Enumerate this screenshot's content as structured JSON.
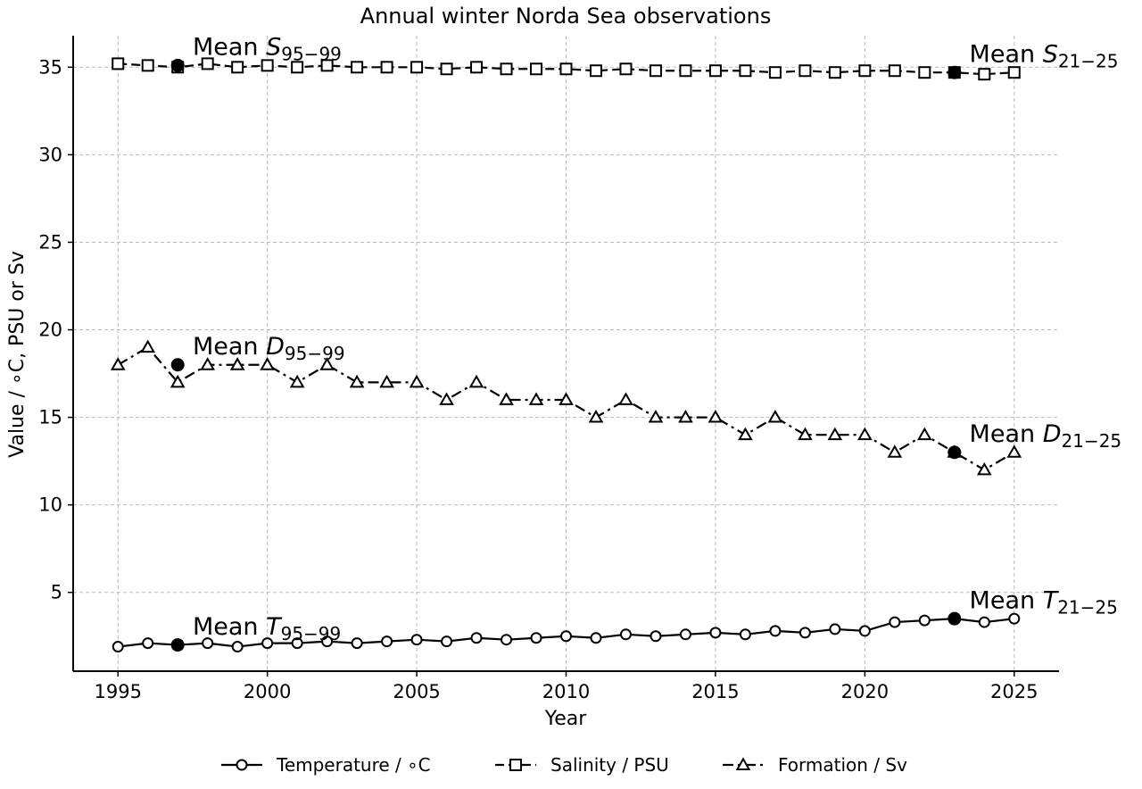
{
  "chart_data": {
    "type": "line",
    "title": "Annual winter Norda Sea observations",
    "xlabel": "Year",
    "ylabel": "Value / ∘C, PSU or Sv",
    "xlim": [
      1993.5,
      2026.5
    ],
    "ylim": [
      0.5,
      36.8
    ],
    "xticks": [
      1995,
      2000,
      2005,
      2010,
      2015,
      2020,
      2025
    ],
    "yticks": [
      5,
      10,
      15,
      20,
      25,
      30,
      35
    ],
    "grid": true,
    "legend_position": "bottom",
    "x": [
      1995,
      1996,
      1997,
      1998,
      1999,
      2000,
      2001,
      2002,
      2003,
      2004,
      2005,
      2006,
      2007,
      2008,
      2009,
      2010,
      2011,
      2012,
      2013,
      2014,
      2015,
      2016,
      2017,
      2018,
      2019,
      2020,
      2021,
      2022,
      2023,
      2024,
      2025
    ],
    "series": [
      {
        "name": "Temperature / ∘C",
        "marker": "circle",
        "line_style": "solid",
        "values": [
          1.9,
          2.1,
          2.0,
          2.1,
          1.9,
          2.1,
          2.1,
          2.2,
          2.1,
          2.2,
          2.3,
          2.2,
          2.4,
          2.3,
          2.4,
          2.5,
          2.4,
          2.6,
          2.5,
          2.6,
          2.7,
          2.6,
          2.8,
          2.7,
          2.9,
          2.8,
          3.3,
          3.4,
          3.5,
          3.3,
          3.5
        ]
      },
      {
        "name": "Salinity / PSU",
        "marker": "square",
        "line_style": "dashed",
        "values": [
          35.2,
          35.1,
          35.0,
          35.2,
          35.0,
          35.1,
          35.0,
          35.1,
          35.0,
          35.0,
          35.0,
          34.9,
          35.0,
          34.9,
          34.9,
          34.9,
          34.8,
          34.9,
          34.8,
          34.8,
          34.8,
          34.8,
          34.7,
          34.8,
          34.7,
          34.8,
          34.8,
          34.7,
          34.7,
          34.6,
          34.7
        ]
      },
      {
        "name": "Formation / Sv",
        "marker": "triangle",
        "line_style": "dashdot",
        "values": [
          18,
          19,
          17,
          18,
          18,
          18,
          17,
          18,
          17,
          17,
          17,
          16,
          17,
          16,
          16,
          16,
          15,
          16,
          15,
          15,
          15,
          14,
          15,
          14,
          14,
          14,
          13,
          14,
          13,
          12,
          13
        ]
      }
    ],
    "mean_points": [
      {
        "x": 1997,
        "y": 35.1
      },
      {
        "x": 2023,
        "y": 34.7
      },
      {
        "x": 1997,
        "y": 18.0
      },
      {
        "x": 2023,
        "y": 13.0
      },
      {
        "x": 1997,
        "y": 2.0
      },
      {
        "x": 2023,
        "y": 3.5
      }
    ],
    "annotations": [
      {
        "prefix": "Mean ",
        "symbol": "S",
        "subscript": "95−99",
        "x": 1997.5,
        "y": 35.7
      },
      {
        "prefix": "Mean ",
        "symbol": "S",
        "subscript": "21−25",
        "x": 2023.5,
        "y": 35.3
      },
      {
        "prefix": "Mean ",
        "symbol": "D",
        "subscript": "95−99",
        "x": 1997.5,
        "y": 18.6
      },
      {
        "prefix": "Mean ",
        "symbol": "D",
        "subscript": "21−25",
        "x": 2023.5,
        "y": 13.6
      },
      {
        "prefix": "Mean ",
        "symbol": "T",
        "subscript": "95−99",
        "x": 1997.5,
        "y": 2.6
      },
      {
        "prefix": "Mean ",
        "symbol": "T",
        "subscript": "21−25",
        "x": 2023.5,
        "y": 4.1
      }
    ]
  }
}
